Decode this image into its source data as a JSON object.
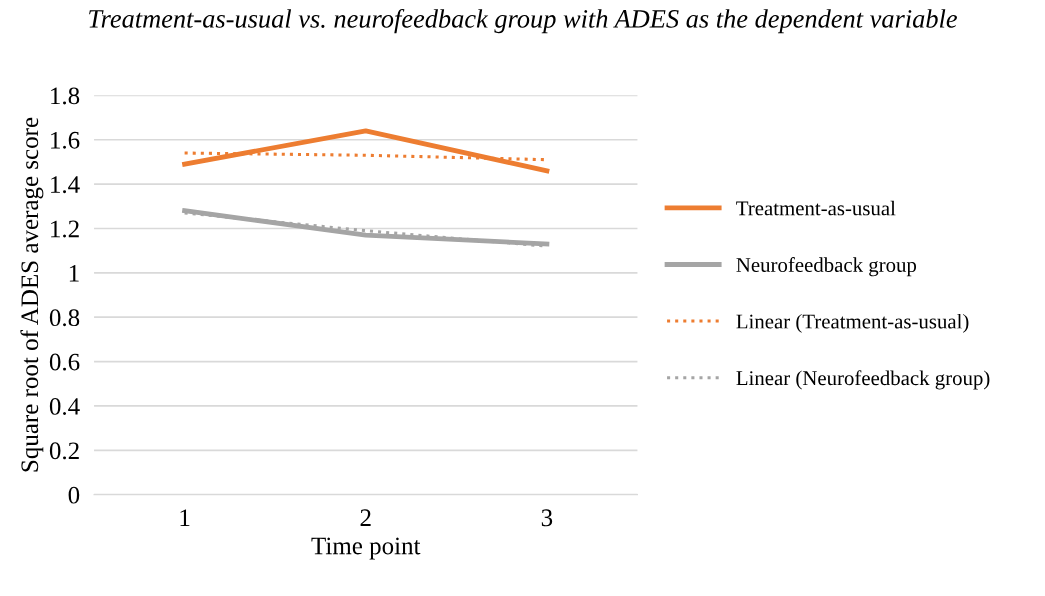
{
  "chart_data": {
    "type": "line",
    "title": "Treatment-as-usual vs. neurofeedback group with ADES as the dependent variable",
    "xlabel": "Time point",
    "ylabel": "Square root of ADES average score",
    "categories": [
      "1",
      "2",
      "3"
    ],
    "series": [
      {
        "name": "Treatment-as-usual",
        "color": "#ed7d31",
        "values": [
          1.49,
          1.64,
          1.46
        ],
        "line_style": "solid"
      },
      {
        "name": "Neurofeedback group",
        "color": "#a5a5a5",
        "values": [
          1.28,
          1.17,
          1.13
        ],
        "line_style": "solid"
      },
      {
        "name": "Linear (Treatment-as-usual)",
        "color": "#ed7d31",
        "values": [
          1.54,
          1.53,
          1.51
        ],
        "line_style": "dotted"
      },
      {
        "name": "Linear (Neurofeedback group)",
        "color": "#a5a5a5",
        "values": [
          1.27,
          1.19,
          1.12
        ],
        "line_style": "dotted"
      }
    ],
    "ylim": [
      0,
      1.8
    ],
    "yticks": [
      0,
      0.2,
      0.4,
      0.6,
      0.8,
      1,
      1.2,
      1.4,
      1.6,
      1.8
    ],
    "grid": "y",
    "legend": "right",
    "marker": "none"
  }
}
